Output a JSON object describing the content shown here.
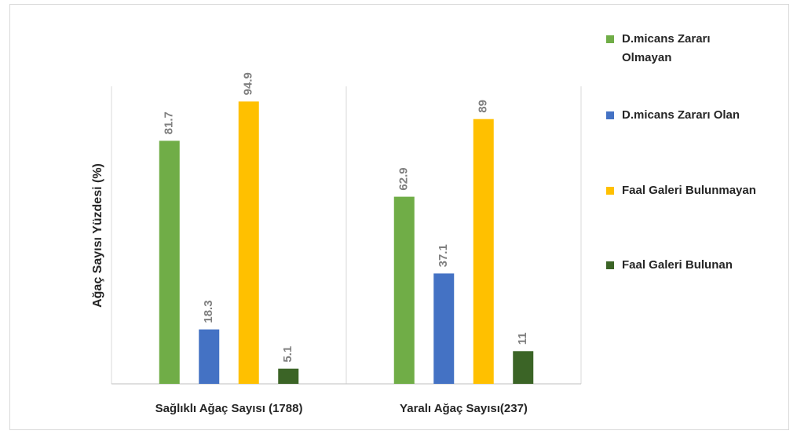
{
  "chart_data": {
    "type": "bar",
    "y_label": "Ağaç Sayısı Yüzdesi (%)",
    "categories": [
      "Sağlıklı Ağaç Sayısı (1788)",
      "Yaralı Ağaç Sayısı(237)"
    ],
    "series": [
      {
        "name": "D.micans Zararı Olmayan",
        "color": "#70ad47",
        "values": [
          81.7,
          62.9
        ]
      },
      {
        "name": "D.micans Zararı Olan",
        "color": "#4472c4",
        "values": [
          18.3,
          37.1
        ]
      },
      {
        "name": "Faal Galeri Bulunmayan",
        "color": "#ffc000",
        "values": [
          94.9,
          89
        ]
      },
      {
        "name": "Faal Galeri Bulunan",
        "color": "#3b6426",
        "values": [
          5.1,
          11
        ]
      }
    ],
    "ylim": [
      0,
      100
    ],
    "legend": "right"
  }
}
